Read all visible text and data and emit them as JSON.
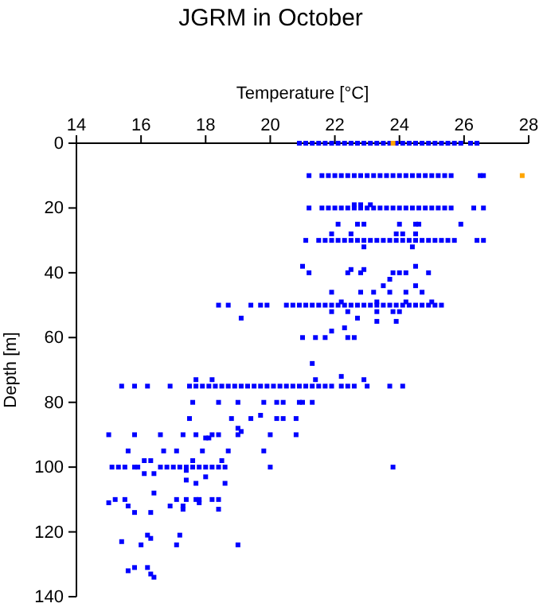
{
  "chart_data": {
    "type": "scatter",
    "title": "JGRM in October",
    "xlabel": "Temperature [°C]",
    "ylabel": "Depth [m]",
    "xlim": [
      14,
      28
    ],
    "xticks": [
      14,
      16,
      18,
      20,
      22,
      24,
      26,
      28
    ],
    "ylim": [
      140,
      0
    ],
    "yticks": [
      0,
      20,
      40,
      60,
      80,
      100,
      120,
      140
    ],
    "grid": false,
    "marker": "square",
    "series": [
      {
        "color": "#0000ff",
        "x": [
          20.9,
          21.1,
          21.3,
          21.5,
          21.7,
          21.9,
          22.1,
          22.3,
          22.5,
          22.7,
          22.9,
          23.1,
          23.3,
          23.5,
          23.7,
          23.9,
          24.1,
          24.3,
          24.5,
          24.7,
          24.9,
          25.1,
          25.3,
          25.5,
          25.7,
          25.9,
          26.2,
          26.4,
          21.2,
          21.6,
          21.8,
          22.0,
          22.2,
          22.4,
          22.6,
          22.8,
          23.0,
          23.2,
          23.4,
          23.6,
          23.8,
          24.0,
          24.2,
          24.4,
          24.6,
          24.8,
          25.0,
          25.2,
          25.4,
          25.6,
          26.5,
          26.6,
          21.2,
          21.6,
          21.8,
          22.0,
          22.2,
          22.4,
          22.6,
          22.8,
          23.0,
          23.2,
          23.4,
          23.6,
          23.8,
          24.0,
          24.2,
          24.4,
          24.6,
          24.8,
          25.0,
          25.2,
          25.4,
          25.6,
          26.3,
          26.6,
          22.6,
          22.8,
          23.1,
          22.1,
          22.7,
          22.9,
          24.0,
          24.5,
          24.6,
          25.9,
          21.9,
          22.5,
          23.9,
          24.1,
          24.5,
          21.1,
          21.5,
          21.7,
          21.9,
          22.1,
          22.3,
          22.5,
          22.7,
          22.9,
          23.1,
          23.3,
          23.5,
          23.7,
          23.9,
          24.1,
          24.3,
          24.5,
          24.7,
          24.9,
          25.1,
          25.3,
          25.5,
          25.7,
          26.4,
          26.6,
          22.9,
          24.4,
          21.0,
          24.5,
          22.5,
          22.9,
          21.2,
          22.4,
          22.8,
          23.8,
          24.0,
          24.2,
          24.9,
          23.7,
          23.5,
          24.5,
          21.9,
          22.8,
          23.2,
          23.7,
          24.2,
          24.7,
          18.4,
          18.7,
          19.4,
          19.7,
          19.9,
          20.5,
          20.7,
          20.9,
          21.1,
          21.3,
          21.5,
          21.7,
          21.9,
          22.1,
          22.3,
          22.5,
          22.7,
          22.9,
          23.1,
          23.3,
          23.5,
          23.7,
          23.9,
          24.1,
          24.3,
          24.5,
          24.7,
          24.9,
          25.1,
          25.3,
          22.2,
          23.3,
          24.2,
          25.0,
          21.9,
          22.4,
          23.3,
          23.8,
          24.0,
          19.1,
          22.7,
          23.3,
          23.9,
          22.3,
          21.9,
          21.0,
          21.4,
          21.7,
          22.4,
          22.6,
          21.3,
          22.2,
          17.7,
          18.2,
          21.4,
          22.9,
          15.4,
          15.8,
          16.2,
          16.9,
          17.5,
          17.7,
          17.9,
          18.1,
          18.3,
          18.5,
          18.7,
          18.9,
          19.1,
          19.3,
          19.5,
          19.7,
          19.9,
          20.1,
          20.3,
          20.5,
          20.7,
          20.9,
          21.1,
          21.3,
          21.5,
          21.7,
          21.9,
          22.2,
          22.4,
          22.6,
          23.0,
          23.7,
          24.1,
          17.6,
          18.4,
          19.0,
          19.8,
          20.2,
          20.4,
          20.9,
          21.0,
          21.3,
          19.7,
          17.5,
          18.8,
          19.4,
          20.2,
          20.4,
          20.8,
          19.0,
          19.1,
          15.0,
          15.8,
          16.6,
          17.3,
          17.7,
          18.2,
          18.4,
          19.0,
          20.0,
          20.8,
          18.0,
          18.1,
          15.6,
          16.7,
          17.1,
          17.9,
          18.7,
          19.8,
          16.1,
          16.3,
          17.6,
          18.5,
          15.1,
          15.3,
          15.5,
          15.8,
          15.9,
          16.6,
          16.8,
          17.0,
          17.2,
          17.4,
          17.6,
          17.8,
          18.0,
          18.2,
          18.4,
          18.6,
          20.0,
          23.8,
          17.4,
          16.1,
          16.4,
          18.0,
          17.4,
          17.7,
          18.6,
          16.4,
          15.2,
          15.5,
          17.1,
          17.4,
          17.7,
          17.8,
          18.2,
          18.4,
          15.0,
          17.8,
          15.6,
          16.9,
          17.3,
          17.3,
          18.4,
          15.8,
          16.3,
          16.2,
          17.2,
          16.3,
          15.4,
          16.0,
          17.1,
          19.0,
          15.8,
          16.2,
          15.6,
          16.3,
          16.4
        ],
        "values": [
          0,
          0,
          0,
          0,
          0,
          0,
          0,
          0,
          0,
          0,
          0,
          0,
          0,
          0,
          0,
          0,
          0,
          0,
          0,
          0,
          0,
          0,
          0,
          0,
          0,
          0,
          0,
          0,
          10,
          10,
          10,
          10,
          10,
          10,
          10,
          10,
          10,
          10,
          10,
          10,
          10,
          10,
          10,
          10,
          10,
          10,
          10,
          10,
          10,
          10,
          10,
          10,
          20,
          20,
          20,
          20,
          20,
          20,
          20,
          20,
          20,
          20,
          20,
          20,
          20,
          20,
          20,
          20,
          20,
          20,
          20,
          20,
          20,
          20,
          20,
          20,
          19,
          19,
          19,
          25,
          25,
          25,
          25,
          25,
          25,
          25,
          28,
          28,
          28,
          28,
          28,
          30,
          30,
          30,
          30,
          30,
          30,
          30,
          30,
          30,
          30,
          30,
          30,
          30,
          30,
          30,
          30,
          30,
          30,
          30,
          30,
          30,
          30,
          30,
          30,
          30,
          32,
          32,
          38,
          38,
          39,
          39,
          40,
          40,
          40,
          40,
          40,
          40,
          40,
          42,
          44,
          44,
          46,
          46,
          46,
          46,
          46,
          46,
          50,
          50,
          50,
          50,
          50,
          50,
          50,
          50,
          50,
          50,
          50,
          50,
          50,
          50,
          50,
          50,
          50,
          50,
          50,
          50,
          50,
          50,
          50,
          50,
          50,
          50,
          50,
          50,
          50,
          50,
          49,
          49,
          49,
          49,
          52,
          52,
          52,
          52,
          52,
          54,
          54,
          55,
          55,
          57,
          58,
          60,
          60,
          60,
          60,
          60,
          68,
          72,
          73,
          73,
          73,
          73,
          75,
          75,
          75,
          75,
          75,
          75,
          75,
          75,
          75,
          75,
          75,
          75,
          75,
          75,
          75,
          75,
          75,
          75,
          75,
          75,
          75,
          75,
          75,
          75,
          75,
          75,
          75,
          75,
          75,
          75,
          75,
          75,
          75,
          80,
          80,
          80,
          80,
          80,
          80,
          80,
          80,
          80,
          84,
          85,
          85,
          85,
          85,
          85,
          85,
          88,
          89,
          90,
          90,
          90,
          90,
          90,
          90,
          90,
          90,
          90,
          90,
          91,
          91,
          95,
          95,
          95,
          95,
          95,
          95,
          98,
          98,
          98,
          98,
          100,
          100,
          100,
          100,
          100,
          100,
          100,
          100,
          100,
          100,
          100,
          100,
          100,
          100,
          100,
          100,
          100,
          100,
          101,
          102,
          102,
          103,
          104,
          105,
          105,
          108,
          110,
          110,
          110,
          110,
          110,
          110,
          110,
          110,
          111,
          111,
          112,
          112,
          112,
          113,
          113,
          114,
          114,
          121,
          121,
          122,
          123,
          124,
          124,
          124,
          131,
          131,
          132,
          133,
          134
        ]
      },
      {
        "color": "#ffa500",
        "x": [
          23.8,
          27.8
        ],
        "values": [
          0,
          10
        ]
      }
    ]
  }
}
